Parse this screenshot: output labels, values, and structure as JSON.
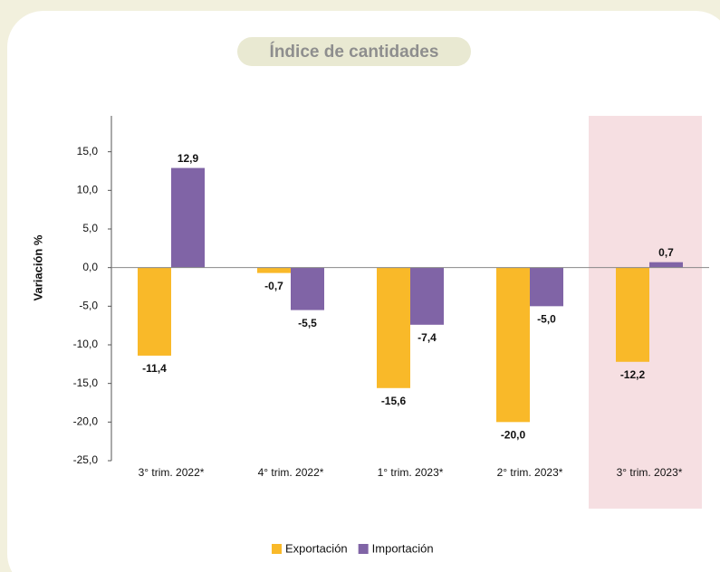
{
  "chart_data": {
    "type": "bar",
    "title": "Índice de cantidades",
    "y_label": "Variación %",
    "categories": [
      "3° trim. 2022*",
      "4° trim. 2022*",
      "1° trim. 2023*",
      "2° trim. 2023*",
      "3° trim. 2023*"
    ],
    "series": [
      {
        "name": "Exportación",
        "color": "#f9b929",
        "values": [
          -11.4,
          -0.7,
          -15.6,
          -20.0,
          -12.2
        ],
        "value_labels": [
          "-11,4",
          "-0,7",
          "-15,6",
          "-20,0",
          "-12,2"
        ]
      },
      {
        "name": "Importación",
        "color": "#8064a6",
        "values": [
          12.9,
          -5.5,
          -7.4,
          -5.0,
          0.7
        ],
        "value_labels": [
          "12,9",
          "-5,5",
          "-7,4",
          "-5,0",
          "0,7"
        ]
      }
    ],
    "ylim": [
      -25,
      20
    ],
    "yticks": [
      {
        "value": -25,
        "label": "-25,0"
      },
      {
        "value": -20,
        "label": "-20,0"
      },
      {
        "value": -15,
        "label": "-15,0"
      },
      {
        "value": -10,
        "label": "-10,0"
      },
      {
        "value": -5,
        "label": "-5,0"
      },
      {
        "value": 0,
        "label": "0,0"
      },
      {
        "value": 5,
        "label": "5,0"
      },
      {
        "value": 10,
        "label": "10,0"
      },
      {
        "value": 15,
        "label": "15,0"
      }
    ]
  }
}
